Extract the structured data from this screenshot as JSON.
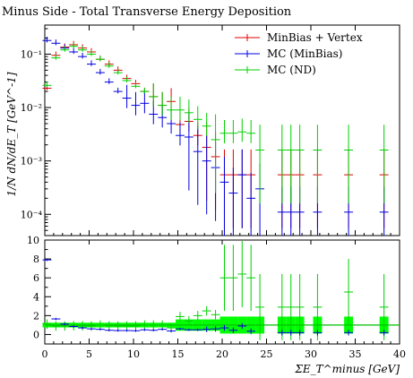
{
  "chart_data": {
    "type": "scatter",
    "title": "Minus Side - Total Transverse Energy Deposition",
    "xlabel": "ΣE_T^minus [GeV]",
    "ylabel_top": "1/N dN/dE_T [GeV^-1]",
    "xlim": [
      0,
      40
    ],
    "top_ylim_log": [
      4e-05,
      0.35
    ],
    "bottom_ylim": [
      -1,
      10
    ],
    "x_ticks": [
      0,
      5,
      10,
      15,
      20,
      25,
      30,
      35,
      40
    ],
    "top_y_ticks": [
      {
        "value": 0.1,
        "label": "10⁻¹"
      },
      {
        "value": 0.01,
        "label": "10⁻²"
      },
      {
        "value": 0.001,
        "label": "10⁻³"
      },
      {
        "value": 0.0001,
        "label": "10⁻⁴"
      }
    ],
    "bottom_y_ticks": [
      0,
      2,
      4,
      6,
      8,
      10
    ],
    "legend_position": "top-right",
    "series": [
      {
        "name": "MinBias + Vertex",
        "color": "#e00000",
        "points": [
          [
            0.25,
            0.023
          ],
          [
            1.25,
            0.095
          ],
          [
            2.25,
            0.135
          ],
          [
            3.25,
            0.15
          ],
          [
            4.25,
            0.13
          ],
          [
            5.25,
            0.11
          ],
          [
            6.25,
            0.08
          ],
          [
            7.25,
            0.065
          ],
          [
            8.25,
            0.05
          ],
          [
            9.25,
            0.035
          ],
          [
            10.25,
            0.028
          ],
          [
            11.25,
            0.02
          ],
          [
            12.25,
            0.016
          ],
          [
            13.25,
            0.011
          ],
          [
            14.25,
            0.013
          ],
          [
            15.25,
            0.0048
          ],
          [
            16.25,
            0.0055
          ],
          [
            17.25,
            0.003
          ],
          [
            18.25,
            0.0018
          ],
          [
            19.25,
            0.0012
          ],
          [
            20.25,
            0.00055
          ],
          [
            21.25,
            0.00055
          ],
          [
            22.25,
            0.00055
          ],
          [
            23.25,
            0.00055
          ],
          [
            26.75,
            0.00055
          ],
          [
            27.75,
            0.00055
          ],
          [
            28.75,
            0.00055
          ],
          [
            30.75,
            0.00055
          ],
          [
            34.25,
            0.00055
          ],
          [
            38.25,
            0.00055
          ]
        ]
      },
      {
        "name": "MC (MinBias)",
        "color": "#0000e0",
        "points": [
          [
            0.25,
            0.18
          ],
          [
            1.25,
            0.16
          ],
          [
            2.25,
            0.13
          ],
          [
            3.25,
            0.11
          ],
          [
            4.25,
            0.09
          ],
          [
            5.25,
            0.065
          ],
          [
            6.25,
            0.045
          ],
          [
            7.25,
            0.03
          ],
          [
            8.25,
            0.02
          ],
          [
            9.25,
            0.015
          ],
          [
            10.25,
            0.011
          ],
          [
            11.25,
            0.012
          ],
          [
            12.25,
            0.0075
          ],
          [
            13.25,
            0.0065
          ],
          [
            14.25,
            0.005
          ],
          [
            15.25,
            0.003
          ],
          [
            16.25,
            0.0028
          ],
          [
            17.25,
            0.0015
          ],
          [
            18.25,
            0.001
          ],
          [
            19.25,
            0.00075
          ],
          [
            20.25,
            0.0004
          ],
          [
            21.25,
            0.00025
          ],
          [
            22.25,
            0.00055
          ],
          [
            23.25,
            0.0002
          ],
          [
            24.25,
            0.0003
          ],
          [
            26.75,
            0.00011
          ],
          [
            27.75,
            0.00011
          ],
          [
            28.75,
            0.00011
          ],
          [
            30.75,
            0.00011
          ],
          [
            34.25,
            0.00011
          ],
          [
            38.25,
            0.00011
          ]
        ]
      },
      {
        "name": "MC (ND)",
        "color": "#00d000",
        "points": [
          [
            0.25,
            0.026
          ],
          [
            1.25,
            0.085
          ],
          [
            2.25,
            0.12
          ],
          [
            3.25,
            0.14
          ],
          [
            4.25,
            0.12
          ],
          [
            5.25,
            0.1
          ],
          [
            6.25,
            0.08
          ],
          [
            7.25,
            0.06
          ],
          [
            8.25,
            0.045
          ],
          [
            9.25,
            0.032
          ],
          [
            10.25,
            0.025
          ],
          [
            11.25,
            0.02
          ],
          [
            12.25,
            0.016
          ],
          [
            13.25,
            0.011
          ],
          [
            14.25,
            0.009
          ],
          [
            15.25,
            0.009
          ],
          [
            16.25,
            0.008
          ],
          [
            17.25,
            0.006
          ],
          [
            18.25,
            0.0045
          ],
          [
            19.25,
            0.0025
          ],
          [
            20.25,
            0.0033
          ],
          [
            21.25,
            0.0033
          ],
          [
            22.25,
            0.0035
          ],
          [
            23.25,
            0.0033
          ],
          [
            24.25,
            0.0016
          ],
          [
            26.75,
            0.0016
          ],
          [
            27.75,
            0.0016
          ],
          [
            28.75,
            0.0016
          ],
          [
            30.75,
            0.0016
          ],
          [
            34.25,
            0.0016
          ],
          [
            38.25,
            0.0016
          ]
        ]
      }
    ],
    "ratio": {
      "reference_line": 1,
      "band_color": "#00ff00",
      "minbias_points": [
        [
          0.25,
          7.9
        ],
        [
          1.25,
          1.65
        ],
        [
          2.25,
          1.1
        ],
        [
          3.25,
          0.85
        ],
        [
          4.25,
          0.7
        ],
        [
          5.25,
          0.6
        ],
        [
          6.25,
          0.55
        ],
        [
          7.25,
          0.45
        ],
        [
          8.25,
          0.42
        ],
        [
          9.25,
          0.42
        ],
        [
          10.25,
          0.4
        ],
        [
          11.25,
          0.5
        ],
        [
          12.25,
          0.45
        ],
        [
          13.25,
          0.55
        ],
        [
          14.25,
          0.38
        ],
        [
          15.25,
          0.6
        ],
        [
          16.25,
          0.5
        ],
        [
          17.25,
          0.5
        ],
        [
          18.25,
          0.55
        ],
        [
          19.25,
          0.6
        ],
        [
          20.25,
          0.7
        ],
        [
          21.25,
          0.45
        ],
        [
          22.25,
          0.9
        ],
        [
          23.25,
          0.35
        ],
        [
          26.75,
          0.2
        ],
        [
          27.75,
          0.2
        ],
        [
          28.75,
          0.2
        ],
        [
          30.75,
          0.2
        ],
        [
          34.25,
          0.2
        ],
        [
          38.25,
          0.2
        ]
      ],
      "nd_points": [
        [
          0.25,
          1.1
        ],
        [
          1.25,
          0.9
        ],
        [
          2.25,
          0.9
        ],
        [
          3.25,
          0.93
        ],
        [
          4.25,
          0.92
        ],
        [
          5.25,
          0.9
        ],
        [
          6.25,
          1.0
        ],
        [
          7.25,
          0.92
        ],
        [
          8.25,
          0.9
        ],
        [
          9.25,
          0.9
        ],
        [
          10.25,
          0.9
        ],
        [
          11.25,
          1.0
        ],
        [
          12.25,
          1.0
        ],
        [
          13.25,
          1.0
        ],
        [
          14.25,
          0.7
        ],
        [
          15.25,
          1.9
        ],
        [
          16.25,
          1.45
        ],
        [
          17.25,
          2.0
        ],
        [
          18.25,
          2.5
        ],
        [
          19.25,
          2.1
        ],
        [
          20.25,
          6.0
        ],
        [
          21.25,
          6.0
        ],
        [
          22.25,
          6.4
        ],
        [
          23.25,
          6.0
        ],
        [
          24.25,
          2.9
        ],
        [
          26.75,
          2.9
        ],
        [
          27.75,
          2.9
        ],
        [
          28.75,
          2.9
        ],
        [
          30.75,
          2.9
        ],
        [
          34.25,
          4.5
        ],
        [
          38.25,
          2.9
        ]
      ]
    }
  }
}
